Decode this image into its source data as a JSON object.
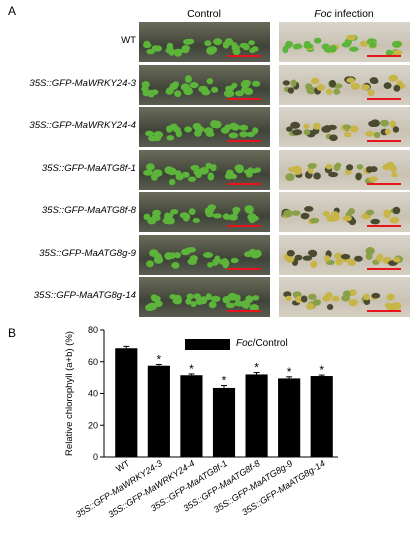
{
  "panelA": {
    "letter": "A",
    "control_header": "Control",
    "foc_header_italic": "Foc",
    "foc_header_rest": " infection",
    "rows": [
      {
        "label": "WT"
      },
      {
        "label": "35S::GFP-MaWRKY24-3"
      },
      {
        "label": "35S::GFP-MaWRKY24-4"
      },
      {
        "label": "35S::GFP-MaATG8f-1"
      },
      {
        "label": "35S::GFP-MaATG8f-8"
      },
      {
        "label": "35S::GFP-MaATG8g-9"
      },
      {
        "label": "35S::GFP-MaATG8g-14"
      }
    ],
    "colors": {
      "scale_bar": "#e8141b",
      "plant_green": "#5cb53a",
      "infected_yellow": "#c8b548",
      "infected_dark": "#4a4a30"
    }
  },
  "panelB": {
    "letter": "B",
    "legend_italic": "Foc",
    "legend_rest": "/Control",
    "bar_color": "#000000"
  },
  "chart_data": {
    "type": "bar",
    "categories": [
      "WT",
      "35S::GFP-MaWRKY24-3",
      "35S::GFP-MaWRKY24-4",
      "35S::GFP-MaATG8f-1",
      "35S::GFP-MaATG8f-8",
      "35S::GFP-MaATG8g-9",
      "35S::GFP-MaATG8g-14"
    ],
    "values": [
      68.5,
      57.5,
      51.5,
      43.5,
      52,
      49.5,
      51
    ],
    "errors": [
      1.2,
      0.8,
      0.8,
      1.5,
      1.2,
      1.0,
      0.6
    ],
    "significance": [
      "",
      "*",
      "*",
      "*",
      "*",
      "*",
      "*"
    ],
    "series": [
      {
        "name": "Foc/Control",
        "values": [
          68.5,
          57.5,
          51.5,
          43.5,
          52,
          49.5,
          51
        ]
      }
    ],
    "ylabel": "Relative chlorophyll (a+b) (%)",
    "ylim": [
      0,
      80
    ],
    "yticks": [
      "0",
      "20",
      "40",
      "60",
      "80"
    ],
    "legend_position": "top-right",
    "grid": false
  }
}
